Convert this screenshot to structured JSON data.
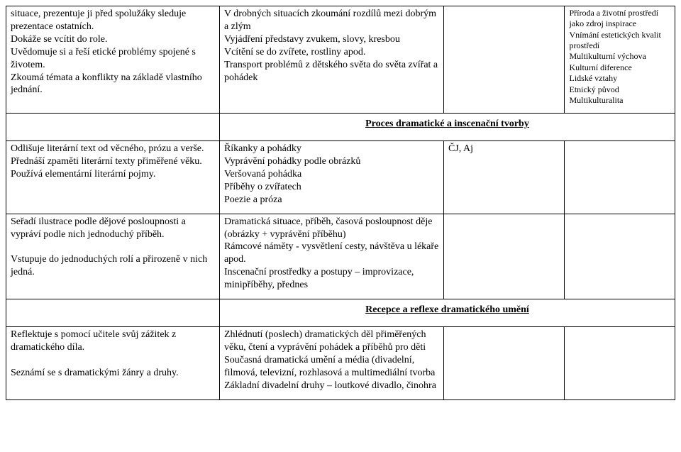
{
  "table": {
    "rows": [
      {
        "c1": "situace, prezentuje ji před spolužáky sleduje prezentace ostatních.\nDokáže se vcítit do role.\nUvědomuje si a řeší etické problémy spojené s životem.\nZkoumá témata a konflikty na základě vlastního jednání.",
        "c2": "V drobných situacích zkoumání rozdílů mezi dobrým a zlým\nVyjádření představy zvukem, slovy, kresbou\nVcítění se do zvířete, rostliny apod.\nTransport problémů z dětského světa do světa zvířat a pohádek",
        "c3": "",
        "c4": "Příroda a životní prostředí jako zdroj inspirace\nVnímání estetických kvalit prostředí\nMultikulturní výchova\nKulturní diference\nLidské vztahy\nEtnický původ\nMultikulturalita"
      },
      {
        "heading": "Proces dramatické a inscenační tvorby"
      },
      {
        "c1": "Odlišuje literární text od  věcného, prózu a verše.\nPřednáší zpaměti literární  texty přiměřené věku.\nPoužívá elementární literární pojmy.",
        "c2": "Říkanky a pohádky\nVyprávění pohádky podle obrázků\nVeršovaná pohádka\nPříběhy o zvířatech\nPoezie a próza",
        "c3": "ČJ, Aj",
        "c4": ""
      },
      {
        "c1": "Seřadí ilustrace podle dějové   posloupnosti a vypráví podle nich jednoduchý příběh.\n\nVstupuje do jednoduchých rolí a přirozeně v nich jedná.",
        "c2": "Dramatická situace, příběh, časová posloupnost děje (obrázky + vyprávění příběhu)\nRámcové náměty - vysvětlení cesty, návštěva u lékaře apod.\nInscenační prostředky a postupy – improvizace, minipříběhy, přednes",
        "c3": "",
        "c4": ""
      },
      {
        "heading": "Recepce a reflexe dramatického umění"
      },
      {
        "c1": "Reflektuje s pomocí učitele svůj zážitek z dramatického díla.\n\nSeznámí se s dramatickými žánry a druhy.",
        "c2": "Zhlédnutí (poslech) dramatických děl přiměřených věku, čtení a vyprávění  pohádek a příběhů pro děti\nSoučasná dramatická umění a média (divadelní, filmová, televizní, rozhlasová a multimediální tvorba\nZákladní divadelní druhy – loutkové divadlo, činohra",
        "c3": "",
        "c4": ""
      }
    ]
  }
}
